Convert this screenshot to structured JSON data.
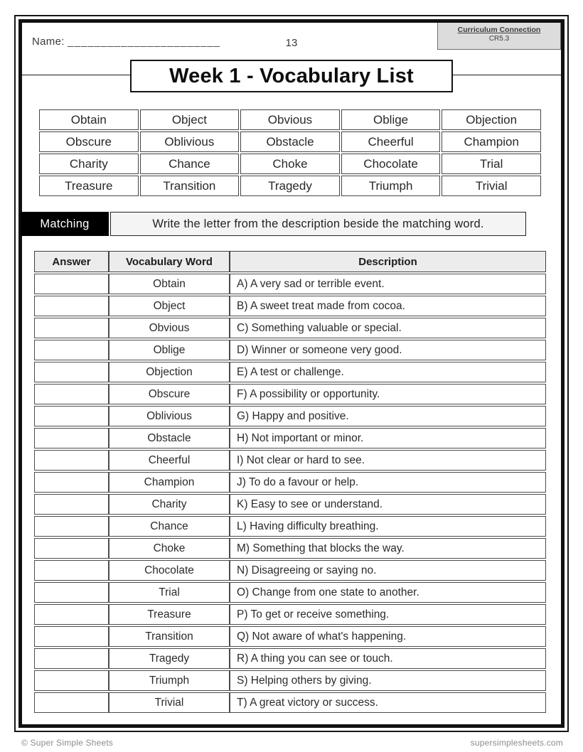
{
  "header": {
    "name_label": "Name:",
    "name_blank": "_______________________",
    "page_number": "13",
    "badge": {
      "title": "Curriculum Connection",
      "code": "CR5.3"
    },
    "title": "Week 1 - Vocabulary List"
  },
  "word_bank": {
    "rows": [
      [
        "Obtain",
        "Object",
        "Obvious",
        "Oblige",
        "Objection"
      ],
      [
        "Obscure",
        "Oblivious",
        "Obstacle",
        "Cheerful",
        "Champion"
      ],
      [
        "Charity",
        "Chance",
        "Choke",
        "Chocolate",
        "Trial"
      ],
      [
        "Treasure",
        "Transition",
        "Tragedy",
        "Triumph",
        "Trivial"
      ]
    ]
  },
  "matching": {
    "label": "Matching",
    "instruction": "Write the letter from the description beside the matching word.",
    "headers": [
      "Answer",
      "Vocabulary Word",
      "Description"
    ],
    "rows": [
      {
        "answer": "",
        "word": "Obtain",
        "description": "A) A very sad or terrible event."
      },
      {
        "answer": "",
        "word": "Object",
        "description": "B) A sweet treat made from cocoa."
      },
      {
        "answer": "",
        "word": "Obvious",
        "description": "C) Something valuable or special."
      },
      {
        "answer": "",
        "word": "Oblige",
        "description": "D) Winner or someone very good."
      },
      {
        "answer": "",
        "word": "Objection",
        "description": "E) A test or challenge."
      },
      {
        "answer": "",
        "word": "Obscure",
        "description": "F) A possibility or opportunity."
      },
      {
        "answer": "",
        "word": "Oblivious",
        "description": "G) Happy and positive."
      },
      {
        "answer": "",
        "word": "Obstacle",
        "description": "H) Not important or minor."
      },
      {
        "answer": "",
        "word": "Cheerful",
        "description": "I) Not clear or hard to see."
      },
      {
        "answer": "",
        "word": "Champion",
        "description": "J) To do a favour or help."
      },
      {
        "answer": "",
        "word": "Charity",
        "description": "K) Easy to see or understand."
      },
      {
        "answer": "",
        "word": "Chance",
        "description": "L) Having difficulty breathing."
      },
      {
        "answer": "",
        "word": "Choke",
        "description": "M) Something that blocks the way."
      },
      {
        "answer": "",
        "word": "Chocolate",
        "description": "N) Disagreeing or saying no."
      },
      {
        "answer": "",
        "word": "Trial",
        "description": "O) Change from one state to another."
      },
      {
        "answer": "",
        "word": "Treasure",
        "description": "P) To get or receive something."
      },
      {
        "answer": "",
        "word": "Transition",
        "description": "Q) Not aware of what's happening."
      },
      {
        "answer": "",
        "word": "Tragedy",
        "description": "R) A thing you can see or touch."
      },
      {
        "answer": "",
        "word": "Triumph",
        "description": "S) Helping others by giving."
      },
      {
        "answer": "",
        "word": "Trivial",
        "description": "T) A great victory or success."
      }
    ]
  },
  "footer": {
    "left": "© Super Simple Sheets",
    "right": "supersimplesheets.com"
  },
  "colors": {
    "ink": "#2e2e2e",
    "frame_border": "#111111",
    "table_border": "#4c4c4c",
    "header_row_bg": "#ececec",
    "badge_bg": "#dcdcdc",
    "matching_label_bg": "#000000",
    "instruction_bg": "#f4f4f4",
    "footer_text": "#8c8c8c"
  }
}
